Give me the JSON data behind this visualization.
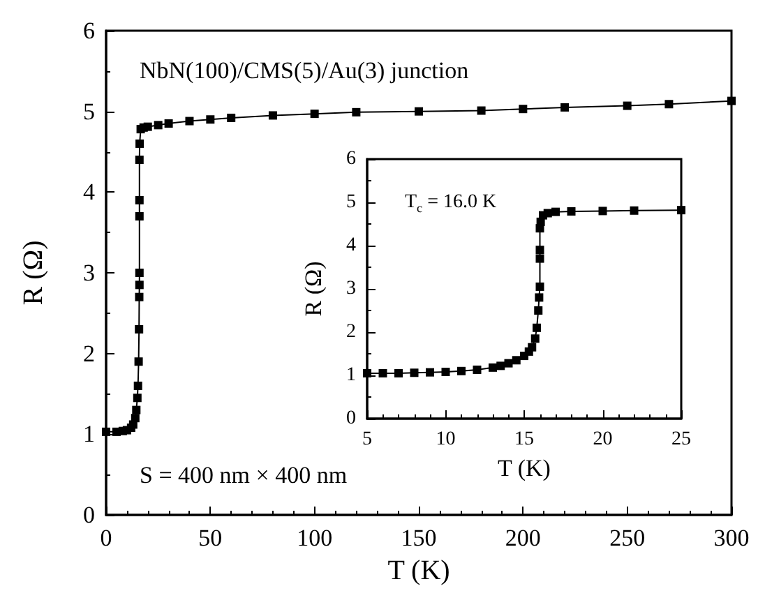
{
  "chart_data": [
    {
      "type": "line",
      "xlabel": "T (K)",
      "ylabel": "R (Ω)",
      "xlim": [
        0,
        300
      ],
      "ylim": [
        0,
        6
      ],
      "xticks": [
        0,
        50,
        100,
        150,
        200,
        250,
        300
      ],
      "yticks": [
        0,
        1,
        2,
        3,
        4,
        5,
        6
      ],
      "grid": false,
      "marker": "square",
      "line_style": "solid",
      "annotations": [
        "NbN(100)/CMS(5)/Au(3) junction",
        "S = 400 nm × 400 nm"
      ],
      "series": [
        {
          "color": "#000000",
          "x": [
            0,
            5,
            8,
            10,
            12,
            13,
            14,
            14.5,
            15,
            15.3,
            15.6,
            15.8,
            15.9,
            16,
            16,
            16,
            16,
            16,
            16.1,
            16.6,
            18,
            20,
            25,
            30,
            40,
            50,
            60,
            80,
            100,
            120,
            150,
            180,
            200,
            220,
            250,
            270,
            300
          ],
          "values": [
            1.03,
            1.03,
            1.04,
            1.05,
            1.08,
            1.12,
            1.2,
            1.3,
            1.45,
            1.6,
            1.9,
            2.3,
            2.7,
            2.85,
            3.0,
            3.7,
            3.9,
            4.4,
            4.6,
            4.78,
            4.8,
            4.81,
            4.83,
            4.85,
            4.88,
            4.9,
            4.92,
            4.95,
            4.97,
            4.99,
            5.0,
            5.01,
            5.03,
            5.05,
            5.07,
            5.09,
            5.13
          ]
        }
      ]
    },
    {
      "type": "line",
      "xlabel": "T (K)",
      "ylabel": "R (Ω)",
      "xlim": [
        5,
        25
      ],
      "ylim": [
        0,
        6
      ],
      "xticks": [
        5,
        10,
        15,
        20,
        25
      ],
      "yticks": [
        0,
        1,
        2,
        3,
        4,
        5,
        6
      ],
      "grid": false,
      "marker": "square",
      "line_style": "solid",
      "annotations": [
        "T$_{c}$ = 16.0 K"
      ],
      "series": [
        {
          "color": "#000000",
          "x": [
            5,
            6,
            7,
            8,
            9,
            10,
            11,
            12,
            13,
            13.5,
            14,
            14.5,
            15,
            15.3,
            15.5,
            15.7,
            15.8,
            15.9,
            15.95,
            16,
            16,
            16,
            16,
            16.05,
            16.2,
            16.5,
            17,
            18,
            20,
            22,
            25
          ],
          "values": [
            1.05,
            1.05,
            1.05,
            1.06,
            1.07,
            1.08,
            1.1,
            1.13,
            1.18,
            1.22,
            1.28,
            1.35,
            1.45,
            1.55,
            1.65,
            1.85,
            2.1,
            2.5,
            2.8,
            3.05,
            3.7,
            3.9,
            4.4,
            4.55,
            4.7,
            4.75,
            4.78,
            4.79,
            4.8,
            4.81,
            4.82
          ]
        }
      ]
    }
  ]
}
